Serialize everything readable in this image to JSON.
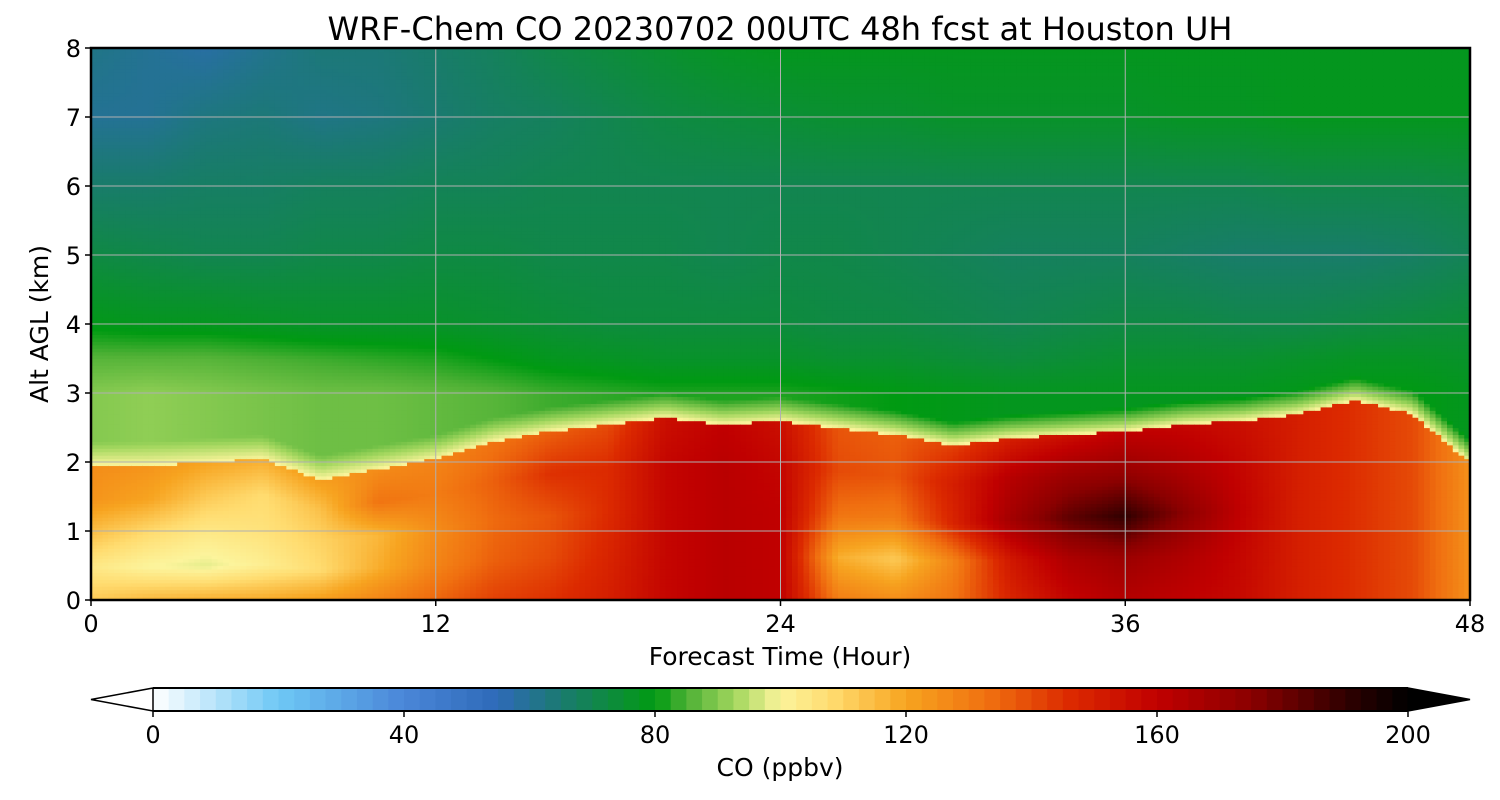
{
  "chart_data": {
    "type": "heatmap",
    "title": "WRF-Chem CO  20230702 00UTC 48h fcst at Houston UH",
    "xlabel": "Forecast Time (Hour)",
    "ylabel": "Alt AGL (km)",
    "xlim": [
      0,
      48
    ],
    "ylim": [
      0,
      8
    ],
    "x_ticks": [
      "0",
      "12",
      "24",
      "36",
      "48"
    ],
    "y_ticks": [
      "0",
      "1",
      "2",
      "3",
      "4",
      "5",
      "6",
      "7",
      "8"
    ],
    "grid": true,
    "colorbar": {
      "label": "CO  (ppbv)",
      "range": [
        0,
        200
      ],
      "ticks": [
        "0",
        "40",
        "80",
        "120",
        "160",
        "200"
      ],
      "extend": "both"
    },
    "x": [
      0,
      2,
      4,
      6,
      8,
      10,
      12,
      14,
      16,
      18,
      20,
      22,
      24,
      26,
      28,
      30,
      32,
      34,
      36,
      38,
      40,
      42,
      44,
      46,
      48
    ],
    "y": [
      0,
      0.5,
      1,
      1.5,
      2,
      2.5,
      3,
      3.5,
      4,
      5,
      6,
      7,
      8
    ],
    "boundary_layer_top_km": [
      1.95,
      1.95,
      2.0,
      2.05,
      1.75,
      1.9,
      2.05,
      2.3,
      2.45,
      2.55,
      2.65,
      2.55,
      2.6,
      2.5,
      2.4,
      2.25,
      2.35,
      2.4,
      2.45,
      2.55,
      2.6,
      2.7,
      2.9,
      2.7,
      2.0
    ],
    "boundary_layer_co_ppbv": [
      [
        112,
        116,
        118,
        119,
        122,
        128,
        135,
        142,
        145,
        150,
        158,
        162,
        160,
        130,
        126,
        132,
        148,
        158,
        163,
        160,
        157,
        150,
        145,
        140,
        125
      ],
      [
        104,
        100,
        98,
        102,
        108,
        118,
        128,
        136,
        140,
        148,
        158,
        162,
        160,
        118,
        112,
        128,
        152,
        165,
        170,
        165,
        158,
        150,
        145,
        140,
        125
      ],
      [
        114,
        108,
        104,
        106,
        110,
        116,
        126,
        134,
        138,
        146,
        158,
        162,
        160,
        132,
        130,
        148,
        168,
        182,
        190,
        175,
        160,
        150,
        145,
        140,
        125
      ],
      [
        124,
        120,
        112,
        108,
        114,
        132,
        130,
        136,
        145,
        146,
        158,
        162,
        158,
        140,
        138,
        150,
        163,
        170,
        172,
        165,
        158,
        150,
        145,
        140,
        125
      ],
      [
        126,
        124,
        120,
        118,
        122,
        126,
        128,
        132,
        136,
        140,
        155,
        160,
        155,
        138,
        136,
        142,
        150,
        155,
        160,
        158,
        155,
        150,
        145,
        140,
        125
      ]
    ],
    "free_troposphere_co_ppbv": [
      [
        90,
        91,
        90,
        89,
        88,
        88,
        87,
        86,
        84,
        83,
        82,
        82,
        82,
        81,
        80,
        79,
        78,
        78,
        78,
        78,
        78,
        79,
        80,
        80,
        78
      ],
      [
        86,
        86,
        86,
        85,
        84,
        83,
        82,
        80,
        78,
        77,
        76,
        76,
        76,
        75,
        75,
        74,
        73,
        74,
        75,
        75,
        75,
        76,
        77,
        77,
        76
      ],
      [
        79,
        78,
        78,
        77,
        76,
        76,
        76,
        75,
        74,
        73,
        73,
        73,
        73,
        72,
        72,
        71,
        70,
        71,
        72,
        72,
        71,
        71,
        72,
        73,
        74
      ],
      [
        72,
        71,
        70,
        70,
        71,
        71,
        72,
        72,
        71,
        71,
        71,
        70,
        71,
        71,
        70,
        69,
        68,
        68,
        68,
        67,
        66,
        66,
        66,
        67,
        69
      ],
      [
        66,
        66,
        67,
        67,
        68,
        68,
        69,
        69,
        70,
        70,
        70,
        70,
        70,
        70,
        70,
        70,
        70,
        70,
        70,
        70,
        70,
        71,
        71,
        71,
        72
      ],
      [
        60,
        60,
        63,
        64,
        62,
        63,
        65,
        67,
        68,
        70,
        72,
        73,
        74,
        75,
        75,
        76,
        76,
        76,
        76,
        77,
        77,
        78,
        78,
        78,
        78
      ],
      [
        62,
        60,
        58,
        61,
        64,
        64,
        66,
        68,
        71,
        73,
        75,
        77,
        78,
        78,
        78,
        78,
        78,
        78,
        78,
        78,
        78,
        78,
        78,
        78,
        78
      ]
    ],
    "free_troposphere_levels_km": [
      3.0,
      3.5,
      4,
      5,
      6,
      7,
      8
    ]
  }
}
